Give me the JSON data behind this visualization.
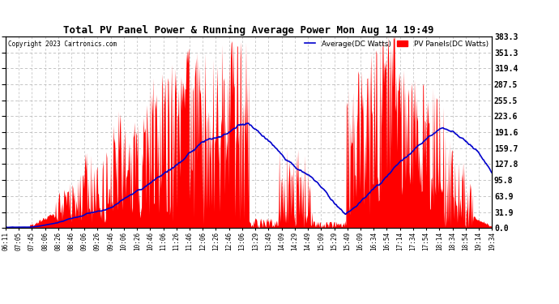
{
  "title": "Total PV Panel Power & Running Average Power Mon Aug 14 19:49",
  "copyright": "Copyright 2023 Cartronics.com",
  "legend_avg": "Average(DC Watts)",
  "legend_pv": "PV Panels(DC Watts)",
  "yticks": [
    0.0,
    31.9,
    63.9,
    95.8,
    127.8,
    159.7,
    191.6,
    223.6,
    255.5,
    287.5,
    319.4,
    351.3,
    383.3
  ],
  "ymax": 383.3,
  "ymin": 0.0,
  "background_color": "#ffffff",
  "pv_color": "#ff0000",
  "avg_color": "#0000cc",
  "grid_color": "#bbbbbb",
  "xtick_labels": [
    "06:11",
    "07:05",
    "07:45",
    "08:06",
    "08:26",
    "08:46",
    "09:06",
    "09:26",
    "09:46",
    "10:06",
    "10:26",
    "10:46",
    "11:06",
    "11:26",
    "11:46",
    "12:06",
    "12:26",
    "12:46",
    "13:06",
    "13:29",
    "13:49",
    "14:09",
    "14:29",
    "14:49",
    "15:09",
    "15:29",
    "15:49",
    "16:09",
    "16:34",
    "16:54",
    "17:14",
    "17:34",
    "17:54",
    "18:14",
    "18:34",
    "18:54",
    "19:14",
    "19:34"
  ]
}
